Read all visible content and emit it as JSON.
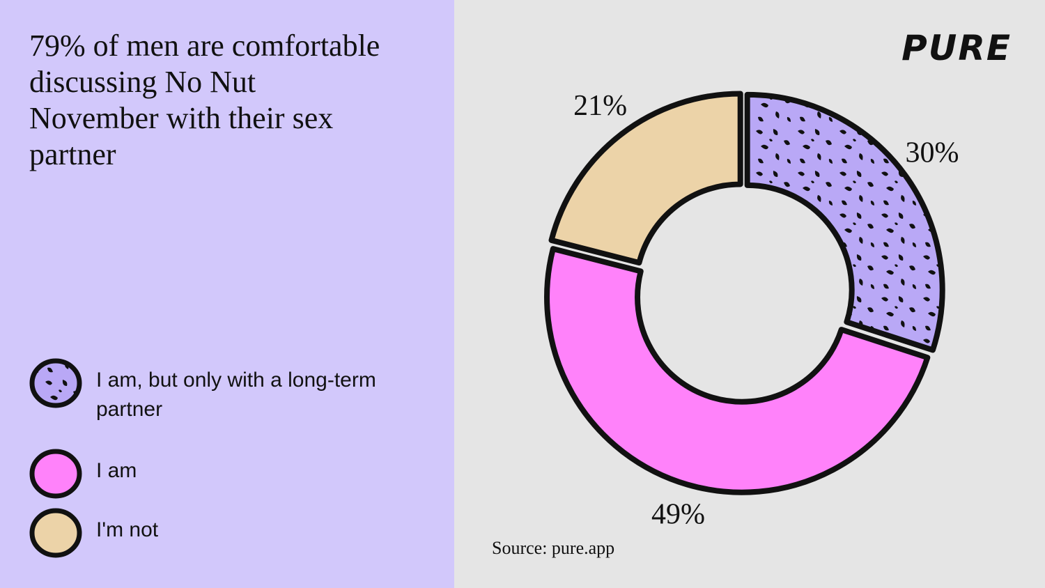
{
  "brand": "PURE",
  "chart_data": {
    "type": "donut",
    "title": "79% of men are comfortable discussing No Nut November with their sex partner",
    "categories": [
      "I am, but only with a long-term partner",
      "I am",
      "I'm not"
    ],
    "values": [
      30,
      49,
      21
    ],
    "value_labels": [
      "30%",
      "49%",
      "21%"
    ],
    "colors": [
      "#b9a8f6",
      "#ff82fa",
      "#ecd3a8"
    ],
    "patterns": [
      "spots",
      null,
      null
    ],
    "source": "Source: pure.app"
  }
}
